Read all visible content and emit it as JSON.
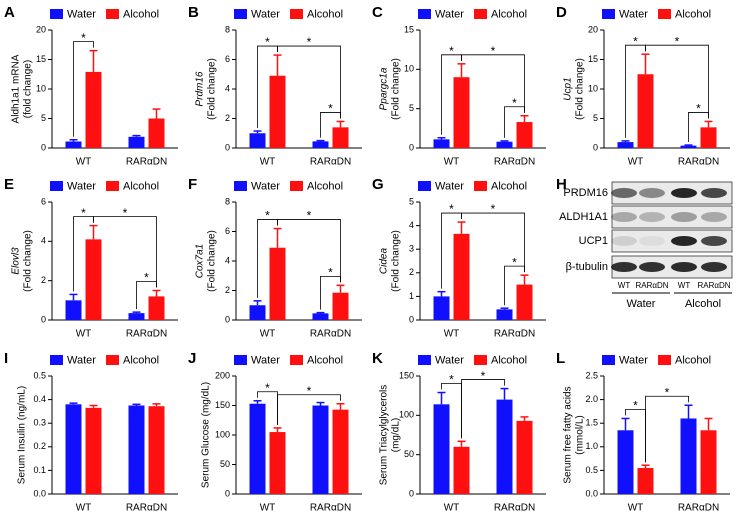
{
  "chart_data": [
    {
      "type": "bar",
      "label": "A",
      "ylabel": [
        "Aldh1a1 mRNA",
        "(fold change)"
      ],
      "ylabel_italic": false,
      "categories": [
        "WT",
        "RARαDN"
      ],
      "series": [
        {
          "name": "Water",
          "color": "#1010ff",
          "values": [
            1.1,
            1.9
          ],
          "errors": [
            0.3,
            0.2
          ]
        },
        {
          "name": "Alcohol",
          "color": "#ff1010",
          "values": [
            12.9,
            5.0
          ],
          "errors": [
            3.6,
            1.6
          ]
        }
      ],
      "ylim": [
        0,
        20
      ],
      "yticks": [
        0,
        5,
        10,
        15,
        20
      ],
      "comparisons": [
        {
          "a": [
            0,
            0
          ],
          "b": [
            1,
            0
          ],
          "label": "*"
        }
      ]
    },
    {
      "type": "bar",
      "label": "B",
      "ylabel": [
        "Prdm16",
        "(Fold change)"
      ],
      "ylabel_italic": true,
      "categories": [
        "WT",
        "RARαDN"
      ],
      "series": [
        {
          "name": "Water",
          "color": "#1010ff",
          "values": [
            1.0,
            0.45
          ],
          "errors": [
            0.15,
            0.05
          ]
        },
        {
          "name": "Alcohol",
          "color": "#ff1010",
          "values": [
            4.9,
            1.4
          ],
          "errors": [
            1.4,
            0.4
          ]
        }
      ],
      "ylim": [
        0,
        8
      ],
      "yticks": [
        0,
        2,
        4,
        6,
        8
      ],
      "comparisons": [
        {
          "a": [
            0,
            0
          ],
          "b": [
            1,
            0
          ],
          "label": "*"
        },
        {
          "a": [
            1,
            0
          ],
          "b": [
            1,
            1
          ],
          "label": "*"
        },
        {
          "a": [
            0,
            1
          ],
          "b": [
            1,
            1
          ],
          "label": "*"
        }
      ]
    },
    {
      "type": "bar",
      "label": "C",
      "ylabel": [
        "Ppargc1a",
        "(Fold change)"
      ],
      "ylabel_italic": true,
      "categories": [
        "WT",
        "RARαDN"
      ],
      "series": [
        {
          "name": "Water",
          "color": "#1010ff",
          "values": [
            1.1,
            0.8
          ],
          "errors": [
            0.2,
            0.1
          ]
        },
        {
          "name": "Alcohol",
          "color": "#ff1010",
          "values": [
            9.0,
            3.3
          ],
          "errors": [
            1.7,
            0.8
          ]
        }
      ],
      "ylim": [
        0,
        15
      ],
      "yticks": [
        0,
        5,
        10,
        15
      ],
      "comparisons": [
        {
          "a": [
            0,
            0
          ],
          "b": [
            1,
            0
          ],
          "label": "*"
        },
        {
          "a": [
            1,
            0
          ],
          "b": [
            1,
            1
          ],
          "label": "*"
        },
        {
          "a": [
            0,
            1
          ],
          "b": [
            1,
            1
          ],
          "label": "*"
        }
      ]
    },
    {
      "type": "bar",
      "label": "D",
      "ylabel": [
        "Ucp1",
        "(Fold change)"
      ],
      "ylabel_italic": true,
      "categories": [
        "WT",
        "RARαDN"
      ],
      "series": [
        {
          "name": "Water",
          "color": "#1010ff",
          "values": [
            1.0,
            0.4
          ],
          "errors": [
            0.2,
            0.1
          ]
        },
        {
          "name": "Alcohol",
          "color": "#ff1010",
          "values": [
            12.5,
            3.5
          ],
          "errors": [
            3.4,
            1.0
          ]
        }
      ],
      "ylim": [
        0,
        20
      ],
      "yticks": [
        0,
        5,
        10,
        15,
        20
      ],
      "comparisons": [
        {
          "a": [
            0,
            0
          ],
          "b": [
            1,
            0
          ],
          "label": "*"
        },
        {
          "a": [
            1,
            0
          ],
          "b": [
            1,
            1
          ],
          "label": "*"
        },
        {
          "a": [
            0,
            1
          ],
          "b": [
            1,
            1
          ],
          "label": "*"
        }
      ]
    },
    {
      "type": "bar",
      "label": "E",
      "ylabel": [
        "Elovl3",
        "(Fold change)"
      ],
      "ylabel_italic": true,
      "categories": [
        "WT",
        "RARαDN"
      ],
      "series": [
        {
          "name": "Water",
          "color": "#1010ff",
          "values": [
            1.0,
            0.35
          ],
          "errors": [
            0.3,
            0.05
          ]
        },
        {
          "name": "Alcohol",
          "color": "#ff1010",
          "values": [
            4.1,
            1.2
          ],
          "errors": [
            0.7,
            0.3
          ]
        }
      ],
      "ylim": [
        0,
        6
      ],
      "yticks": [
        0,
        2,
        4,
        6
      ],
      "comparisons": [
        {
          "a": [
            0,
            0
          ],
          "b": [
            1,
            0
          ],
          "label": "*"
        },
        {
          "a": [
            1,
            0
          ],
          "b": [
            1,
            1
          ],
          "label": "*"
        },
        {
          "a": [
            0,
            1
          ],
          "b": [
            1,
            1
          ],
          "label": "*"
        }
      ]
    },
    {
      "type": "bar",
      "label": "F",
      "ylabel": [
        "Cox7a1",
        "(Fold change)"
      ],
      "ylabel_italic": true,
      "categories": [
        "WT",
        "RARαDN"
      ],
      "series": [
        {
          "name": "Water",
          "color": "#1010ff",
          "values": [
            1.0,
            0.45
          ],
          "errors": [
            0.3,
            0.05
          ]
        },
        {
          "name": "Alcohol",
          "color": "#ff1010",
          "values": [
            4.9,
            1.85
          ],
          "errors": [
            1.3,
            0.5
          ]
        }
      ],
      "ylim": [
        0,
        8
      ],
      "yticks": [
        0,
        2,
        4,
        6,
        8
      ],
      "comparisons": [
        {
          "a": [
            0,
            0
          ],
          "b": [
            1,
            0
          ],
          "label": "*"
        },
        {
          "a": [
            1,
            0
          ],
          "b": [
            1,
            1
          ],
          "label": "*"
        },
        {
          "a": [
            0,
            1
          ],
          "b": [
            1,
            1
          ],
          "label": "*"
        }
      ]
    },
    {
      "type": "bar",
      "label": "G",
      "ylabel": [
        "Cidea",
        "(Fold change)"
      ],
      "ylabel_italic": true,
      "categories": [
        "WT",
        "RARαDN"
      ],
      "series": [
        {
          "name": "Water",
          "color": "#1010ff",
          "values": [
            1.0,
            0.45
          ],
          "errors": [
            0.2,
            0.05
          ]
        },
        {
          "name": "Alcohol",
          "color": "#ff1010",
          "values": [
            3.65,
            1.5
          ],
          "errors": [
            0.5,
            0.4
          ]
        }
      ],
      "ylim": [
        0,
        5
      ],
      "yticks": [
        0,
        1,
        2,
        3,
        4,
        5
      ],
      "comparisons": [
        {
          "a": [
            0,
            0
          ],
          "b": [
            1,
            0
          ],
          "label": "*"
        },
        {
          "a": [
            1,
            0
          ],
          "b": [
            1,
            1
          ],
          "label": "*"
        },
        {
          "a": [
            0,
            1
          ],
          "b": [
            1,
            1
          ],
          "label": "*"
        }
      ]
    },
    {
      "type": "blot",
      "label": "H",
      "proteins": [
        "PRDM16",
        "ALDH1A1",
        "UCP1",
        "β-tubulin"
      ],
      "lanes": [
        "WT",
        "RARαDN",
        "WT",
        "RARαDN"
      ],
      "groups": [
        "Water",
        "Alcohol"
      ]
    },
    {
      "type": "bar",
      "label": "I",
      "ylabel": [
        "Serum Insulin (ng/mL)"
      ],
      "ylabel_italic": false,
      "categories": [
        "WT",
        "RARαDN"
      ],
      "series": [
        {
          "name": "Water",
          "color": "#1010ff",
          "values": [
            0.38,
            0.375
          ],
          "errors": [
            0.005,
            0.005
          ]
        },
        {
          "name": "Alcohol",
          "color": "#ff1010",
          "values": [
            0.365,
            0.372
          ],
          "errors": [
            0.01,
            0.01
          ]
        }
      ],
      "ylim": [
        0,
        0.5
      ],
      "yticks": [
        {
          "value": 0,
          "label": "0.0"
        },
        0.1,
        0.2,
        0.3,
        0.4,
        0.5
      ],
      "comparisons": []
    },
    {
      "type": "bar",
      "label": "J",
      "ylabel": [
        "Serum Glucose (mg/dL)"
      ],
      "ylabel_italic": false,
      "categories": [
        "WT",
        "RARαDN"
      ],
      "series": [
        {
          "name": "Water",
          "color": "#1010ff",
          "values": [
            153,
            150
          ],
          "errors": [
            5,
            5
          ]
        },
        {
          "name": "Alcohol",
          "color": "#ff1010",
          "values": [
            105,
            143
          ],
          "errors": [
            7,
            10
          ]
        }
      ],
      "ylim": [
        0,
        200
      ],
      "yticks": [
        0,
        50,
        100,
        150,
        200
      ],
      "comparisons": [
        {
          "a": [
            0,
            0
          ],
          "b": [
            1,
            0
          ],
          "label": "*"
        },
        {
          "a": [
            1,
            0
          ],
          "b": [
            1,
            1
          ],
          "label": "*"
        }
      ]
    },
    {
      "type": "bar",
      "label": "K",
      "ylabel": [
        "Serum Triacylglycerols",
        "(mg/dL)"
      ],
      "ylabel_italic": false,
      "categories": [
        "WT",
        "RARαDN"
      ],
      "series": [
        {
          "name": "Water",
          "color": "#1010ff",
          "values": [
            114,
            120
          ],
          "errors": [
            15,
            14
          ]
        },
        {
          "name": "Alcohol",
          "color": "#ff1010",
          "values": [
            60,
            93
          ],
          "errors": [
            7,
            5
          ]
        }
      ],
      "ylim": [
        0,
        150
      ],
      "yticks": [
        0,
        50,
        100,
        150
      ],
      "comparisons": [
        {
          "a": [
            0,
            0
          ],
          "b": [
            1,
            0
          ],
          "label": "*"
        },
        {
          "a": [
            1,
            0
          ],
          "b": [
            0,
            1
          ],
          "label": "*"
        }
      ]
    },
    {
      "type": "bar",
      "label": "L",
      "ylabel": [
        "Serum free fatty acids",
        "(mmol/L)"
      ],
      "ylabel_italic": false,
      "categories": [
        "WT",
        "RARαDN"
      ],
      "series": [
        {
          "name": "Water",
          "color": "#1010ff",
          "values": [
            1.35,
            1.6
          ],
          "errors": [
            0.25,
            0.28
          ]
        },
        {
          "name": "Alcohol",
          "color": "#ff1010",
          "values": [
            0.55,
            1.35
          ],
          "errors": [
            0.06,
            0.25
          ]
        }
      ],
      "ylim": [
        0,
        2.5
      ],
      "yticks": [
        {
          "value": 0,
          "label": "0.0"
        },
        0.5,
        {
          "value": 1,
          "label": "1.0"
        },
        1.5,
        {
          "value": 2,
          "label": "2.0"
        },
        2.5
      ],
      "comparisons": [
        {
          "a": [
            0,
            0
          ],
          "b": [
            1,
            0
          ],
          "label": "*"
        },
        {
          "a": [
            1,
            0
          ],
          "b": [
            0,
            1
          ],
          "label": "*"
        }
      ]
    }
  ]
}
